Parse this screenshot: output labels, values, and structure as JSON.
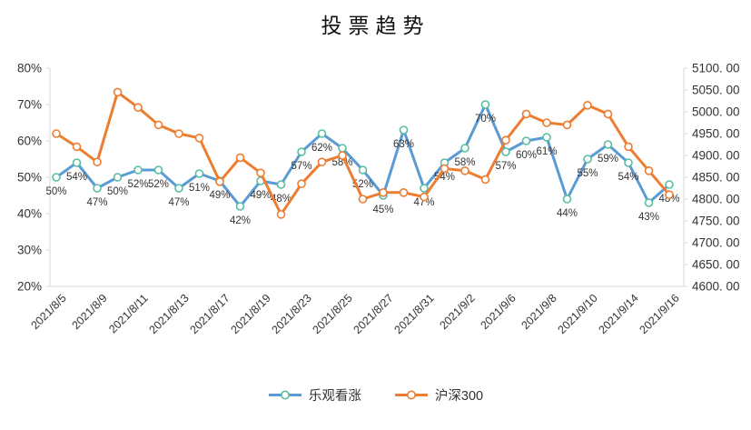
{
  "title": "投票趋势",
  "legend": {
    "items": [
      {
        "label": "乐观看涨"
      },
      {
        "label": "沪深300"
      }
    ]
  },
  "colors": {
    "bullish_line": "#5B9BD5",
    "bullish_marker": "#57BDA2",
    "index_line": "#ED7D31",
    "index_marker": "#ED7D31",
    "axis_line": "#D9D9D9",
    "text": "#333333"
  },
  "chart_data": {
    "type": "line",
    "title": "投票趋势",
    "grid": false,
    "legend_position": "bottom",
    "x_point_count": 31,
    "x_tick_positions": [
      0,
      2,
      4,
      6,
      8,
      10,
      12,
      14,
      16,
      18,
      20,
      22,
      24,
      26,
      28,
      30
    ],
    "x_tick_labels": [
      "2021/8/5",
      "2021/8/9",
      "2021/8/11",
      "2021/8/13",
      "2021/8/17",
      "2021/8/19",
      "2021/8/23",
      "2021/8/25",
      "2021/8/27",
      "2021/8/31",
      "2021/9/2",
      "2021/9/6",
      "2021/9/8",
      "2021/9/10",
      "2021/9/14",
      "2021/9/16"
    ],
    "left_axis": {
      "min": 20,
      "max": 80,
      "tick_step": 10,
      "unit": "%",
      "tick_labels": [
        "80%",
        "70%",
        "60%",
        "50%",
        "40%",
        "30%",
        "20%"
      ]
    },
    "right_axis": {
      "min": 4600,
      "max": 5100,
      "tick_step": 50,
      "tick_labels": [
        "5100. 00",
        "5050. 00",
        "5000. 00",
        "4950. 00",
        "4900. 00",
        "4850. 00",
        "4800. 00",
        "4750. 00",
        "4700. 00",
        "4650. 00",
        "4600. 00"
      ]
    },
    "series": [
      {
        "name": "乐观看涨",
        "axis": "left",
        "color": "#5B9BD5",
        "marker_color": "#57BDA2",
        "data_labels_visible": true,
        "label_suffix": "%",
        "values": [
          50,
          54,
          47,
          50,
          52,
          52,
          47,
          51,
          49,
          42,
          49,
          48,
          57,
          62,
          58,
          52,
          45,
          63,
          47,
          54,
          58,
          70,
          57,
          60,
          61,
          44,
          55,
          59,
          54,
          43,
          48
        ]
      },
      {
        "name": "沪深300",
        "axis": "right",
        "color": "#ED7D31",
        "marker_color": "#ED7D31",
        "data_labels_visible": false,
        "values": [
          4950,
          4920,
          4885,
          5045,
          5010,
          4970,
          4950,
          4940,
          4840,
          4895,
          4860,
          4765,
          4835,
          4885,
          4900,
          4800,
          4815,
          4815,
          4805,
          4870,
          4865,
          4845,
          4935,
          4995,
          4975,
          4970,
          5015,
          4995,
          4920,
          4865,
          4810
        ]
      }
    ]
  }
}
